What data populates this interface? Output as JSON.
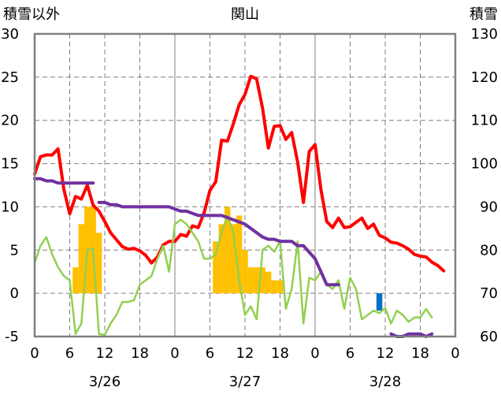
{
  "chart_data": {
    "type": "line",
    "title": "関山",
    "left_axis_label": "積雪以外",
    "right_axis_label": "積雪",
    "y_left": {
      "min": -5,
      "max": 30,
      "ticks": [
        "-5",
        "0",
        "5",
        "10",
        "15",
        "20",
        "25",
        "30"
      ]
    },
    "y_right": {
      "min": 60,
      "max": 130,
      "ticks": [
        "60",
        "70",
        "80",
        "90",
        "100",
        "110",
        "120",
        "130"
      ]
    },
    "x": {
      "min": 0,
      "max": 72,
      "hour_ticks": [
        "0",
        "6",
        "12",
        "18",
        "0",
        "6",
        "12",
        "18",
        "0",
        "6",
        "12",
        "18",
        "0"
      ],
      "day_labels": [
        {
          "label": "3/26",
          "at": 12
        },
        {
          "label": "3/27",
          "at": 36
        },
        {
          "label": "3/28",
          "at": 60
        }
      ]
    },
    "grid": true,
    "colors": {
      "temperature": "#ff0000",
      "dewpoint": "#92d050",
      "snow_depth": "#7030a0",
      "snowfall": "#ffc000",
      "snowfall_negative": "#0070c0"
    },
    "series": [
      {
        "key": "temperature",
        "axis": "left",
        "points": [
          [
            0,
            13.8
          ],
          [
            1,
            15.8
          ],
          [
            2,
            16
          ],
          [
            3,
            16
          ],
          [
            4,
            16.7
          ],
          [
            5,
            12
          ],
          [
            6,
            9.2
          ],
          [
            7,
            11.2
          ],
          [
            8,
            10.9
          ],
          [
            9,
            12.5
          ],
          [
            10,
            10.2
          ],
          [
            11,
            9.5
          ],
          [
            12,
            8.3
          ],
          [
            13,
            7
          ],
          [
            14,
            6.2
          ],
          [
            15,
            5.4
          ],
          [
            16,
            5.1
          ],
          [
            17,
            5.2
          ],
          [
            18,
            4.9
          ],
          [
            19,
            4.4
          ],
          [
            20,
            3.5
          ],
          [
            21,
            4.2
          ],
          [
            22,
            5.6
          ],
          [
            23,
            6
          ],
          [
            24,
            6
          ],
          [
            25,
            6.8
          ],
          [
            26,
            6.6
          ],
          [
            27,
            7.8
          ],
          [
            28,
            7.6
          ],
          [
            29,
            9.3
          ],
          [
            30,
            11.9
          ],
          [
            31,
            12.9
          ],
          [
            32,
            17.7
          ],
          [
            33,
            17.6
          ],
          [
            34,
            19.6
          ],
          [
            35,
            21.8
          ],
          [
            36,
            23
          ],
          [
            37,
            25.1
          ],
          [
            38,
            24.8
          ],
          [
            39,
            21.4
          ],
          [
            40,
            16.8
          ],
          [
            41,
            19.3
          ],
          [
            42,
            19.4
          ],
          [
            43,
            17.8
          ],
          [
            44,
            18.6
          ],
          [
            45,
            15.2
          ],
          [
            46,
            10.5
          ],
          [
            47,
            16.4
          ],
          [
            48,
            17.2
          ],
          [
            49,
            12
          ],
          [
            50,
            8.3
          ],
          [
            51,
            7.6
          ],
          [
            52,
            8.7
          ],
          [
            53,
            7.6
          ],
          [
            54,
            7.7
          ],
          [
            55,
            8.2
          ],
          [
            56,
            8.7
          ],
          [
            57,
            7.5
          ],
          [
            58,
            8
          ],
          [
            59,
            6.7
          ],
          [
            60,
            6.4
          ],
          [
            61,
            5.9
          ],
          [
            62,
            5.8
          ],
          [
            63,
            5.5
          ],
          [
            64,
            5.1
          ],
          [
            65,
            4.5
          ],
          [
            66,
            4.3
          ],
          [
            67,
            4.2
          ],
          [
            68,
            3.6
          ],
          [
            69,
            3.2
          ],
          [
            70,
            2.6
          ]
        ]
      },
      {
        "key": "dewpoint",
        "axis": "left",
        "points": [
          [
            0,
            3.5
          ],
          [
            1,
            5.5
          ],
          [
            2,
            6.5
          ],
          [
            3,
            4.5
          ],
          [
            4,
            3
          ],
          [
            5,
            2
          ],
          [
            6,
            1.5
          ],
          [
            7,
            -4.7
          ],
          [
            8,
            -3.5
          ],
          [
            9,
            5
          ],
          [
            10,
            5.2
          ],
          [
            11,
            -4.7
          ],
          [
            12,
            -4.8
          ],
          [
            13,
            -3.5
          ],
          [
            14,
            -2.5
          ],
          [
            15,
            -1
          ],
          [
            16,
            -1
          ],
          [
            17,
            -0.8
          ],
          [
            18,
            1
          ],
          [
            19,
            1.5
          ],
          [
            20,
            2
          ],
          [
            21,
            4
          ],
          [
            22,
            5.5
          ],
          [
            23,
            2.5
          ],
          [
            24,
            8
          ],
          [
            25,
            8.5
          ],
          [
            26,
            8
          ],
          [
            27,
            7
          ],
          [
            28,
            6
          ],
          [
            29,
            4
          ],
          [
            30,
            4
          ],
          [
            31,
            4.5
          ],
          [
            32,
            7
          ],
          [
            33,
            9
          ],
          [
            34,
            7
          ],
          [
            35,
            1.5
          ],
          [
            36,
            -2.5
          ],
          [
            37,
            -1.5
          ],
          [
            38,
            -3
          ],
          [
            39,
            5
          ],
          [
            40,
            5.5
          ],
          [
            41,
            4.8
          ],
          [
            42,
            6
          ],
          [
            43,
            -1.8
          ],
          [
            44,
            0.5
          ],
          [
            45,
            6
          ],
          [
            46,
            -3.5
          ],
          [
            47,
            1.8
          ],
          [
            48,
            1.5
          ],
          [
            49,
            2.5
          ],
          [
            50,
            1
          ],
          [
            51,
            0.5
          ],
          [
            52,
            1.5
          ],
          [
            53,
            -1.8
          ],
          [
            54,
            1.8
          ],
          [
            55,
            0.5
          ],
          [
            56,
            -3
          ],
          [
            57,
            -2.5
          ],
          [
            58,
            -2
          ],
          [
            59,
            -2.3
          ],
          [
            60,
            -1.7
          ],
          [
            61,
            -3.5
          ],
          [
            62,
            -2
          ],
          [
            63,
            -2.5
          ],
          [
            64,
            -3.3
          ],
          [
            65,
            -2.8
          ],
          [
            66,
            -2.8
          ],
          [
            67,
            -1.8
          ],
          [
            68,
            -2.8
          ]
        ]
      },
      {
        "key": "snow_depth",
        "axis": "right",
        "points": [
          [
            0,
            96.5
          ],
          [
            1,
            96.5
          ],
          [
            2,
            96
          ],
          [
            3,
            96
          ],
          [
            4,
            95.5
          ],
          [
            5,
            95.5
          ],
          [
            6,
            95.5
          ],
          [
            7,
            95.5
          ],
          [
            8,
            95.5
          ],
          [
            9,
            95.5
          ],
          [
            10,
            95.5
          ],
          [
            null,
            null
          ],
          [
            11,
            91
          ],
          [
            12,
            91
          ],
          [
            13,
            90.5
          ],
          [
            14,
            90.5
          ],
          [
            15,
            90
          ],
          [
            16,
            90
          ],
          [
            17,
            90
          ],
          [
            18,
            90
          ],
          [
            19,
            90
          ],
          [
            20,
            90
          ],
          [
            21,
            90
          ],
          [
            22,
            90
          ],
          [
            23,
            90
          ],
          [
            24,
            89.5
          ],
          [
            25,
            89
          ],
          [
            26,
            89
          ],
          [
            27,
            88.5
          ],
          [
            28,
            88
          ],
          [
            29,
            88
          ],
          [
            30,
            88
          ],
          [
            31,
            88
          ],
          [
            32,
            88
          ],
          [
            33,
            87.5
          ],
          [
            34,
            87
          ],
          [
            35,
            86.5
          ],
          [
            36,
            86
          ],
          [
            37,
            85
          ],
          [
            38,
            84
          ],
          [
            39,
            83
          ],
          [
            40,
            82.5
          ],
          [
            41,
            82.5
          ],
          [
            42,
            82
          ],
          [
            43,
            82
          ],
          [
            44,
            82
          ],
          [
            45,
            81
          ],
          [
            46,
            81
          ],
          [
            47,
            79.5
          ],
          [
            48,
            78
          ],
          [
            49,
            75
          ],
          [
            50,
            72
          ],
          [
            51,
            72
          ],
          [
            52,
            72
          ],
          [
            null,
            null
          ],
          [
            61,
            60.6
          ],
          [
            62,
            60
          ],
          [
            63,
            60
          ],
          [
            64,
            60.6
          ],
          [
            65,
            60.6
          ],
          [
            66,
            60.6
          ],
          [
            67,
            60
          ],
          [
            68,
            60.6
          ]
        ]
      }
    ],
    "bars": [
      {
        "key": "snowfall",
        "axis": "left",
        "points": [
          [
            7,
            3
          ],
          [
            8,
            8
          ],
          [
            9,
            10
          ],
          [
            10,
            10
          ],
          [
            11,
            7
          ],
          [
            31,
            6
          ],
          [
            32,
            8
          ],
          [
            33,
            10
          ],
          [
            34,
            8
          ],
          [
            35,
            9
          ],
          [
            36,
            5
          ],
          [
            37,
            3
          ],
          [
            38,
            3
          ],
          [
            39,
            3
          ],
          [
            40,
            2.5
          ],
          [
            41,
            1.5
          ],
          [
            42,
            1.5
          ]
        ]
      },
      {
        "key": "snowfall_negative",
        "axis": "left",
        "points": [
          [
            59,
            -2
          ]
        ]
      }
    ]
  }
}
